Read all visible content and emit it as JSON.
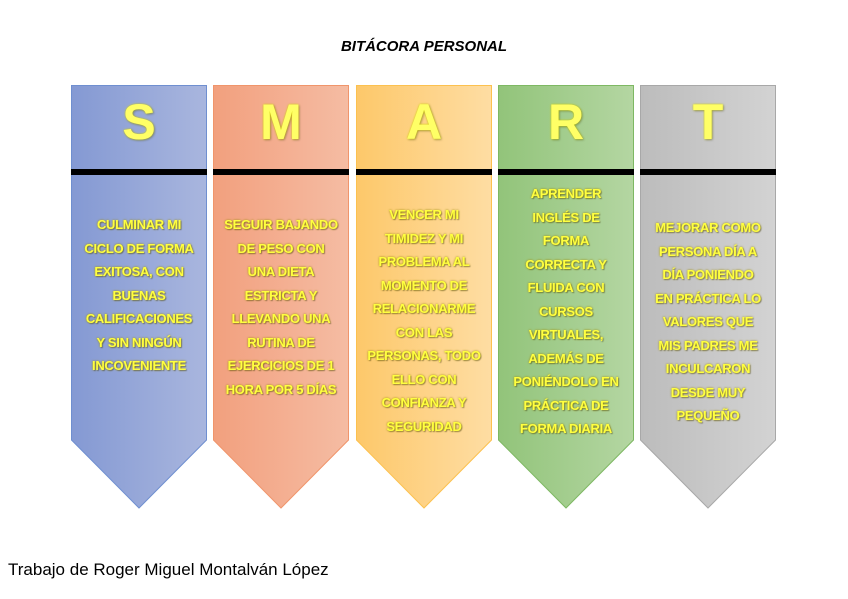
{
  "title": "BITÁCORA PERSONAL",
  "columns": [
    {
      "letter": "S",
      "text": "CULMINAR MI CICLO DE FORMA EXITOSA, CON BUENAS CALIFICACIONES Y SIN NINGÚN INCOVENIENTE",
      "color_from": "#8499d3",
      "color_to": "#a9b6de",
      "border": "#6f8fd0"
    },
    {
      "letter": "M",
      "text": "SEGUIR BAJANDO DE PESO CON UNA DIETA ESTRICTA Y LLEVANDO UNA RUTINA DE EJERCICIOS DE 1 HORA POR 5 DÍAS",
      "color_from": "#f2a07e",
      "color_to": "#f5bca3",
      "border": "#f0956b"
    },
    {
      "letter": "A",
      "text": "VENCER MI TIMIDEZ Y MI PROBLEMA AL MOMENTO DE RELACIONARME CON LAS PERSONAS, TODO ELLO CON CONFIANZA Y SEGURIDAD",
      "color_from": "#fdc86a",
      "color_to": "#fedda3",
      "border": "#fcc14f"
    },
    {
      "letter": "R",
      "text": "APRENDER INGLÉS DE FORMA CORRECTA Y FLUIDA CON CURSOS VIRTUALES, ADEMÁS DE PONIÉNDOLO EN PRÁCTICA DE FORMA DIARIA",
      "color_from": "#92c47a",
      "color_to": "#b4d6a2",
      "border": "#7eb863"
    },
    {
      "letter": "T",
      "text": "MEJORAR COMO PERSONA DÍA A DÍA PONIENDO EN PRÁCTICA LO VALORES QUE MIS PADRES ME INCULCARON DESDE MUY PEQUEÑO",
      "color_from": "#bcbcbc",
      "color_to": "#d3d3d3",
      "border": "#a8a8a8"
    }
  ],
  "footer": "Trabajo de Roger Miguel Montalván López"
}
